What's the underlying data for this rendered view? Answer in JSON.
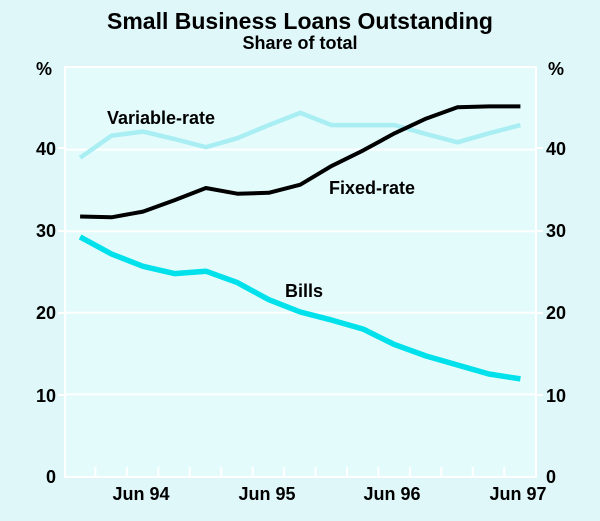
{
  "title": "Small Business Loans Outstanding",
  "subtitle": "Share of total",
  "y_axis": {
    "unit_left": "%",
    "unit_right": "%",
    "tick_labels": [
      "40",
      "30",
      "20",
      "10",
      "0"
    ],
    "tick_values": [
      40,
      30,
      20,
      10,
      0
    ]
  },
  "x_axis": {
    "labels": [
      "Jun 94",
      "Jun 95",
      "Jun 96",
      "Jun 97"
    ]
  },
  "series_labels": {
    "variable": "Variable-rate",
    "fixed": "Fixed-rate",
    "bills": "Bills"
  },
  "colors": {
    "background": "#dff7f9",
    "plot_background": "#e4fbfc",
    "grid": "#ffffff",
    "variable_rate_line": "#a9eef3",
    "fixed_rate_line": "#000000",
    "bills_line": "#00e1ec",
    "text": "#000000"
  },
  "chart_data": {
    "type": "line",
    "title": "Small Business Loans Outstanding",
    "subtitle": "Share of total",
    "ylabel": "%",
    "ylim": [
      0,
      50
    ],
    "yticks": [
      0,
      10,
      20,
      30,
      40
    ],
    "grid": "horizontal, white gridlines at 10/20/30/40",
    "legend": "inline text labels next to lines",
    "x": [
      "Dec 93",
      "Mar 94",
      "Jun 94",
      "Sep 94",
      "Dec 94",
      "Mar 95",
      "Jun 95",
      "Sep 95",
      "Dec 95",
      "Mar 96",
      "Jun 96",
      "Sep 96",
      "Dec 96",
      "Mar 97",
      "Jun 97"
    ],
    "xtick_labels": [
      "Jun 94",
      "Jun 95",
      "Jun 96",
      "Jun 97"
    ],
    "series": [
      {
        "name": "Variable-rate",
        "color": "#a9eef3",
        "stroke_width": 4.5,
        "values": [
          39.0,
          41.7,
          42.2,
          41.3,
          40.3,
          41.4,
          43.0,
          44.5,
          43.0,
          43.0,
          43.0,
          41.9,
          40.9,
          42.0,
          43.0
        ]
      },
      {
        "name": "Bills",
        "color": "#00e1ec",
        "stroke_width": 5.5,
        "values": [
          29.3,
          27.2,
          25.7,
          24.8,
          25.1,
          23.7,
          21.6,
          20.1,
          19.1,
          18.0,
          16.1,
          14.7,
          13.6,
          12.5,
          11.9
        ]
      },
      {
        "name": "Fixed-rate",
        "color": "#000000",
        "stroke_width": 4,
        "values": [
          31.8,
          31.7,
          32.4,
          33.8,
          35.3,
          34.6,
          34.7,
          35.7,
          38.0,
          39.9,
          42.0,
          43.8,
          45.2,
          45.3,
          45.3
        ]
      }
    ]
  }
}
